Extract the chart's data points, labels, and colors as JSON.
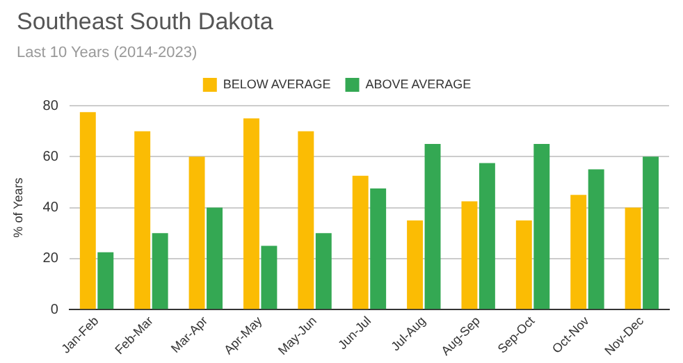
{
  "chart_data": {
    "type": "bar",
    "title": "Southeast South Dakota",
    "subtitle": "Last 10 Years (2014-2023)",
    "ylabel": "% of Years",
    "categories": [
      "Jan-Feb",
      "Feb-Mar",
      "Mar-Apr",
      "Apr-May",
      "May-Jun",
      "Jun-Jul",
      "Jul-Aug",
      "Aug-Sep",
      "Sep-Oct",
      "Oct-Nov",
      "Nov-Dec"
    ],
    "series": [
      {
        "name": "BELOW AVERAGE",
        "color": "#fbbc04",
        "values": [
          77.5,
          70,
          60,
          75,
          70,
          52.5,
          35,
          42.5,
          35,
          45,
          40
        ]
      },
      {
        "name": "ABOVE AVERAGE",
        "color": "#34a853",
        "values": [
          22.5,
          30,
          40,
          25,
          30,
          47.5,
          65,
          57.5,
          65,
          55,
          60
        ]
      }
    ],
    "ylim": [
      0,
      80
    ],
    "yticks": [
      0,
      20,
      40,
      60,
      80
    ],
    "grid": "y",
    "legend": "top"
  }
}
